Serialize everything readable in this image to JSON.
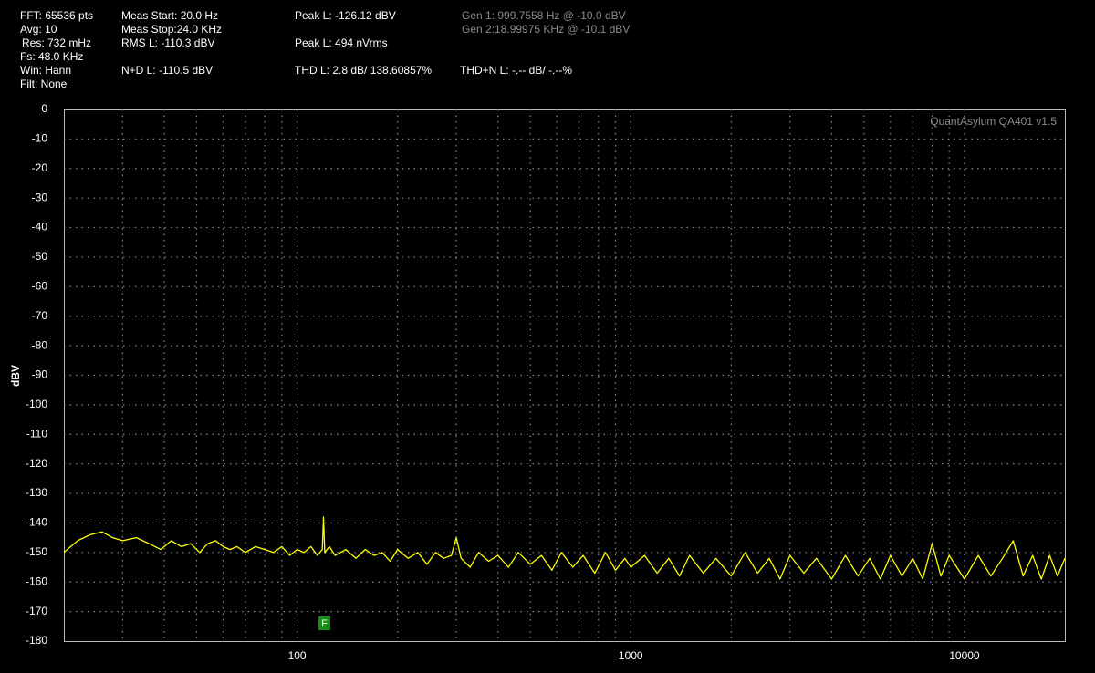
{
  "header": {
    "fft": "FFT: 65536 pts",
    "avg": "Avg: 10",
    "res": "Res: 732 mHz",
    "fs": "Fs: 48.0 KHz",
    "win": "Win: Hann",
    "filt": "Filt: None",
    "meas_start": "Meas Start: 20.0 Hz",
    "meas_stop": "Meas Stop:24.0 KHz",
    "rms": "RMS L: -110.3 dBV",
    "nd": "N+D L: -110.5 dBV",
    "peak_dbv": "Peak L: -126.12 dBV",
    "peak_v": "Peak L: 494 nVrms",
    "thd": "THD L: 2.8 dB/ 138.60857%",
    "gen1": "Gen 1: 999.7558 Hz @ -10.0  dBV",
    "gen2": "Gen 2:18.99975 KHz @ -10.1  dBV",
    "thdn": "THD+N L: -.-- dB/ -.--%"
  },
  "chart_data": {
    "type": "line",
    "watermark": "QuantAsylum QA401 v1.5",
    "y_label": "dBV",
    "marker": "F",
    "xlog": true,
    "grid": true,
    "xlim": [
      20,
      20000
    ],
    "ylim": [
      -180,
      0
    ],
    "xticks": [
      100,
      1000,
      10000
    ],
    "yticks": [
      0,
      -10,
      -20,
      -30,
      -40,
      -50,
      -60,
      -70,
      -80,
      -90,
      -100,
      -110,
      -120,
      -130,
      -140,
      -150,
      -160,
      -170,
      -180
    ],
    "x": [
      20,
      22,
      24,
      26,
      28,
      30,
      33,
      36,
      39,
      42,
      45,
      48,
      51,
      54,
      57,
      60,
      63,
      66,
      70,
      75,
      80,
      85,
      90,
      95,
      100,
      105,
      110,
      115,
      119,
      120,
      121,
      125,
      130,
      140,
      150,
      160,
      170,
      180,
      190,
      200,
      215,
      230,
      245,
      260,
      275,
      290,
      300,
      310,
      330,
      350,
      375,
      400,
      430,
      460,
      500,
      540,
      580,
      620,
      670,
      720,
      780,
      840,
      900,
      960,
      1000,
      1100,
      1200,
      1300,
      1400,
      1500,
      1650,
      1800,
      2000,
      2200,
      2400,
      2600,
      2800,
      3000,
      3300,
      3600,
      4000,
      4400,
      4800,
      5200,
      5600,
      6000,
      6500,
      7000,
      7500,
      8000,
      8500,
      9000,
      10000,
      11000,
      12000,
      13000,
      14000,
      15000,
      16000,
      17000,
      18000,
      19000,
      20000
    ],
    "series": [
      {
        "name": "L",
        "color": "#ffff00",
        "values": [
          -150,
          -146,
          -144,
          -143,
          -145,
          -146,
          -145,
          -147,
          -149,
          -146,
          -148,
          -147,
          -150,
          -147,
          -146,
          -148,
          -149,
          -148,
          -150,
          -148,
          -149,
          -150,
          -148,
          -151,
          -149,
          -150,
          -148,
          -151,
          -149,
          -138,
          -150,
          -148,
          -151,
          -149,
          -152,
          -149,
          -151,
          -150,
          -153,
          -149,
          -152,
          -150,
          -154,
          -150,
          -152,
          -151,
          -145,
          -152,
          -155,
          -150,
          -153,
          -151,
          -155,
          -150,
          -154,
          -151,
          -156,
          -150,
          -155,
          -151,
          -157,
          -150,
          -156,
          -152,
          -155,
          -151,
          -157,
          -152,
          -158,
          -151,
          -157,
          -152,
          -158,
          -150,
          -157,
          -152,
          -159,
          -151,
          -157,
          -152,
          -159,
          -151,
          -158,
          -152,
          -159,
          -151,
          -158,
          -152,
          -159,
          -147,
          -158,
          -151,
          -159,
          -151,
          -158,
          -152,
          -146,
          -158,
          -151,
          -159,
          -151,
          -158,
          -152
        ]
      }
    ]
  }
}
